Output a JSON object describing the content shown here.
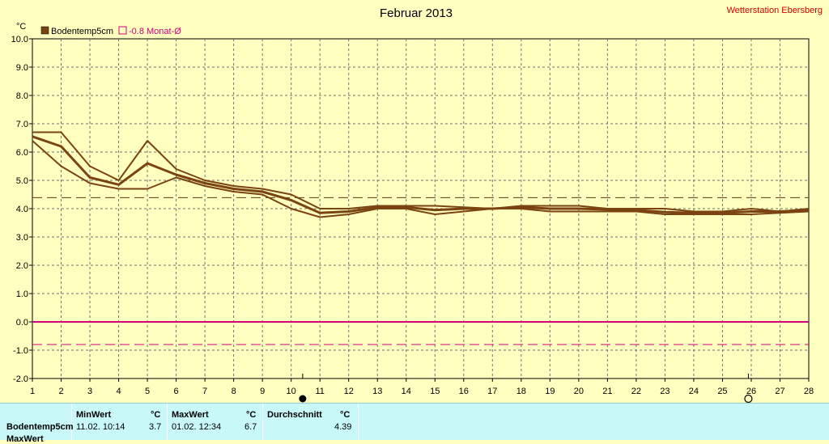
{
  "header": {
    "title": "Februar 2013",
    "station": "Wetterstation Ebersberg"
  },
  "colors": {
    "background": "#ffffc0",
    "series": "#7a4410",
    "zero_line": "#d0007a",
    "avg_line": "#7a4410",
    "monat_avg": "#d0007a",
    "panel": "#c8f8f8"
  },
  "chart_data": {
    "type": "line",
    "ylabel": "°C",
    "ylim": [
      -2.0,
      10.0
    ],
    "xlim": [
      1,
      28
    ],
    "y_ticks": [
      "10.0",
      "9.0",
      "8.0",
      "7.0",
      "6.0",
      "5.0",
      "4.0",
      "3.0",
      "2.0",
      "1.0",
      "0.0",
      "-1.0",
      "-2.0"
    ],
    "x_ticks": [
      "1",
      "2",
      "3",
      "4",
      "5",
      "6",
      "7",
      "8",
      "9",
      "10",
      "11",
      "12",
      "13",
      "14",
      "15",
      "16",
      "17",
      "18",
      "19",
      "20",
      "21",
      "22",
      "23",
      "24",
      "25",
      "26",
      "27",
      "28"
    ],
    "grid": true,
    "legend": [
      {
        "name": "Bodentemp5cm",
        "color": "#7a4410"
      },
      {
        "name": "-0.8 Monat-Ø",
        "color": "#d0007a"
      }
    ],
    "series": [
      {
        "name": "Bodentemp5cm",
        "role": "max",
        "x": [
          1,
          2,
          3,
          4,
          5,
          6,
          7,
          8,
          9,
          10,
          11,
          12,
          13,
          14,
          15,
          16,
          17,
          18,
          19,
          20,
          21,
          22,
          23,
          24,
          25,
          26,
          27,
          28
        ],
        "values": [
          6.7,
          6.7,
          5.5,
          5.0,
          6.4,
          5.4,
          5.0,
          4.8,
          4.7,
          4.5,
          4.0,
          4.0,
          4.1,
          4.1,
          4.1,
          4.05,
          4.0,
          4.1,
          4.1,
          4.1,
          4.0,
          4.0,
          4.0,
          3.9,
          3.9,
          4.0,
          3.9,
          4.0
        ]
      },
      {
        "name": "Bodentemp5cm",
        "role": "mean",
        "x": [
          1,
          2,
          3,
          4,
          5,
          6,
          7,
          8,
          9,
          10,
          11,
          12,
          13,
          14,
          15,
          16,
          17,
          18,
          19,
          20,
          21,
          22,
          23,
          24,
          25,
          26,
          27,
          28
        ],
        "values": [
          6.55,
          6.2,
          5.1,
          4.85,
          5.6,
          5.2,
          4.9,
          4.7,
          4.6,
          4.3,
          3.85,
          3.9,
          4.05,
          4.05,
          3.95,
          4.0,
          4.0,
          4.05,
          4.0,
          4.0,
          3.97,
          3.95,
          3.88,
          3.85,
          3.85,
          3.9,
          3.9,
          3.95
        ]
      },
      {
        "name": "Bodentemp5cm",
        "role": "min",
        "x": [
          1,
          2,
          3,
          4,
          5,
          6,
          7,
          8,
          9,
          10,
          11,
          12,
          13,
          14,
          15,
          16,
          17,
          18,
          19,
          20,
          21,
          22,
          23,
          24,
          25,
          26,
          27,
          28
        ],
        "values": [
          6.4,
          5.5,
          4.9,
          4.7,
          4.7,
          5.1,
          4.8,
          4.6,
          4.5,
          4.0,
          3.7,
          3.8,
          4.0,
          4.0,
          3.8,
          3.9,
          4.0,
          4.0,
          3.9,
          3.9,
          3.9,
          3.9,
          3.8,
          3.8,
          3.8,
          3.8,
          3.85,
          3.9
        ]
      }
    ],
    "avg_line": 4.39,
    "monat_avg_line": -0.8,
    "markers": {
      "min_x": 10.4,
      "max_x": 25.9
    }
  },
  "stats": {
    "columns": [
      {
        "label": "MinWert",
        "unit": "°C"
      },
      {
        "label": "MaxWert",
        "unit": "°C"
      },
      {
        "label": "Durchschnitt",
        "unit": "°C"
      }
    ],
    "rows": [
      {
        "label": "Bodentemp5cm",
        "min_time": "11.02.  10:14",
        "min_val": "3.7",
        "max_time": "01.02.  12:34",
        "max_val": "6.7",
        "avg": "4.39"
      },
      {
        "label": "MaxWert"
      }
    ]
  }
}
